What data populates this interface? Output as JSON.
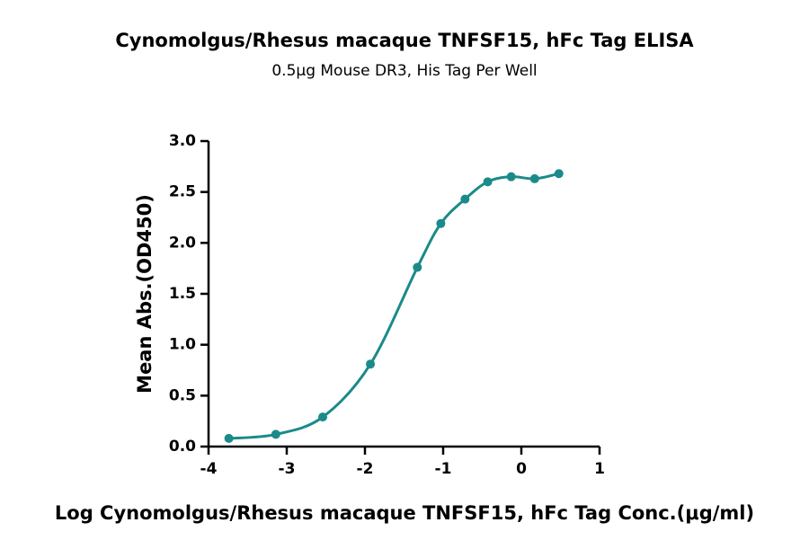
{
  "chart_data": {
    "type": "scatter",
    "title": "Cynomolgus/Rhesus macaque TNFSF15, hFc Tag ELISA",
    "subtitle": "0.5μg Mouse DR3, His Tag Per Well",
    "x_label": "Log Cynomolgus/Rhesus macaque TNFSF15, hFc Tag Conc.(μg/ml)",
    "y_label": "Mean Abs.(OD450)",
    "x": [
      -3.74,
      -3.14,
      -2.54,
      -1.93,
      -1.33,
      -1.03,
      -0.72,
      -0.43,
      -0.13,
      0.17,
      0.48
    ],
    "values": [
      0.08,
      0.12,
      0.29,
      0.81,
      1.76,
      2.19,
      2.43,
      2.6,
      2.65,
      2.63,
      2.68
    ],
    "color": "#1b8a8a",
    "xlim": [
      -4,
      1
    ],
    "xticks": [
      -4,
      -3,
      -2,
      -1,
      0,
      1
    ],
    "ylim": [
      0,
      3
    ],
    "yticks": [
      {
        "value": 0,
        "label": "0.0"
      },
      0.5,
      {
        "value": 1,
        "label": "1.0"
      },
      1.5,
      {
        "value": 2,
        "label": "2.0"
      },
      2.5,
      {
        "value": 3,
        "label": "3.0"
      }
    ]
  }
}
